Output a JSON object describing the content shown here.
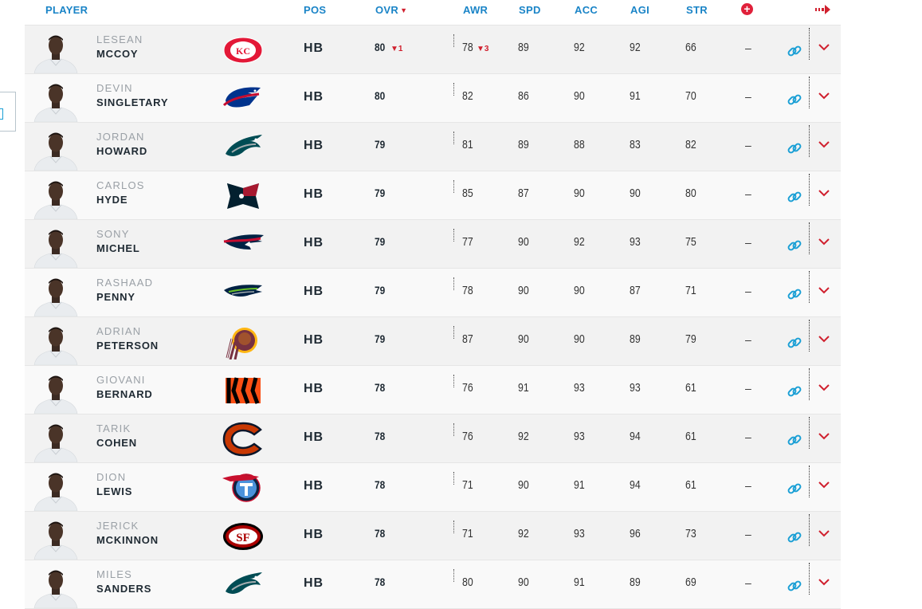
{
  "header": {
    "player": "PLAYER",
    "pos": "POS",
    "ovr": "OVR",
    "awr": "AWR",
    "spd": "SPD",
    "acc": "ACC",
    "agi": "AGI",
    "str": "STR",
    "sort_indicator": "▼",
    "add_icon": "plus-circle-icon",
    "expand_icon": "arrow-right-icon"
  },
  "colors": {
    "header_text": "#1a84c7",
    "accent_red": "#d0202e",
    "link_blue": "#1a9fd5"
  },
  "rows": [
    {
      "first": "LESEAN",
      "last": "MCCOY",
      "team": "chiefs-logo",
      "pos": "HB",
      "ovr": "80",
      "ovr_change": "▼1",
      "awr": "78",
      "awr_change": "▼3",
      "spd": "89",
      "acc": "92",
      "agi": "92",
      "str": "66",
      "extra": "–"
    },
    {
      "first": "DEVIN",
      "last": "SINGLETARY",
      "team": "bills-logo",
      "pos": "HB",
      "ovr": "80",
      "ovr_change": "",
      "awr": "82",
      "awr_change": "",
      "spd": "86",
      "acc": "90",
      "agi": "91",
      "str": "70",
      "extra": "–"
    },
    {
      "first": "JORDAN",
      "last": "HOWARD",
      "team": "eagles-logo",
      "pos": "HB",
      "ovr": "79",
      "ovr_change": "",
      "awr": "81",
      "awr_change": "",
      "spd": "89",
      "acc": "88",
      "agi": "83",
      "str": "82",
      "extra": "–"
    },
    {
      "first": "CARLOS",
      "last": "HYDE",
      "team": "texans-logo",
      "pos": "HB",
      "ovr": "79",
      "ovr_change": "",
      "awr": "85",
      "awr_change": "",
      "spd": "87",
      "acc": "90",
      "agi": "90",
      "str": "80",
      "extra": "–"
    },
    {
      "first": "SONY",
      "last": "MICHEL",
      "team": "patriots-logo",
      "pos": "HB",
      "ovr": "79",
      "ovr_change": "",
      "awr": "77",
      "awr_change": "",
      "spd": "90",
      "acc": "92",
      "agi": "93",
      "str": "75",
      "extra": "–"
    },
    {
      "first": "RASHAAD",
      "last": "PENNY",
      "team": "seahawks-logo",
      "pos": "HB",
      "ovr": "79",
      "ovr_change": "",
      "awr": "78",
      "awr_change": "",
      "spd": "90",
      "acc": "90",
      "agi": "87",
      "str": "71",
      "extra": "–"
    },
    {
      "first": "ADRIAN",
      "last": "PETERSON",
      "team": "redskins-logo",
      "pos": "HB",
      "ovr": "79",
      "ovr_change": "",
      "awr": "87",
      "awr_change": "",
      "spd": "90",
      "acc": "90",
      "agi": "89",
      "str": "79",
      "extra": "–"
    },
    {
      "first": "GIOVANI",
      "last": "BERNARD",
      "team": "bengals-logo",
      "pos": "HB",
      "ovr": "78",
      "ovr_change": "",
      "awr": "76",
      "awr_change": "",
      "spd": "91",
      "acc": "93",
      "agi": "93",
      "str": "61",
      "extra": "–"
    },
    {
      "first": "TARIK",
      "last": "COHEN",
      "team": "bears-logo",
      "pos": "HB",
      "ovr": "78",
      "ovr_change": "",
      "awr": "76",
      "awr_change": "",
      "spd": "92",
      "acc": "93",
      "agi": "94",
      "str": "61",
      "extra": "–"
    },
    {
      "first": "DION",
      "last": "LEWIS",
      "team": "titans-logo",
      "pos": "HB",
      "ovr": "78",
      "ovr_change": "",
      "awr": "71",
      "awr_change": "",
      "spd": "90",
      "acc": "91",
      "agi": "94",
      "str": "61",
      "extra": "–"
    },
    {
      "first": "JERICK",
      "last": "MCKINNON",
      "team": "49ers-logo",
      "pos": "HB",
      "ovr": "78",
      "ovr_change": "",
      "awr": "71",
      "awr_change": "",
      "spd": "92",
      "acc": "93",
      "agi": "96",
      "str": "73",
      "extra": "–"
    },
    {
      "first": "MILES",
      "last": "SANDERS",
      "team": "eagles-logo",
      "pos": "HB",
      "ovr": "78",
      "ovr_change": "",
      "awr": "80",
      "awr_change": "",
      "spd": "90",
      "acc": "91",
      "agi": "89",
      "str": "69",
      "extra": "–"
    }
  ]
}
